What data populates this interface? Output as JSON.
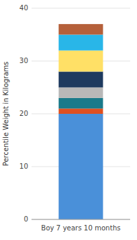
{
  "chart_data": {
    "type": "bar",
    "stacked": true,
    "categories": [
      "Boy 7 years 10 months"
    ],
    "series": [
      {
        "color": "#4a90d9",
        "values": [
          20.0
        ]
      },
      {
        "color": "#e05020",
        "values": [
          1.0
        ]
      },
      {
        "color": "#1a7a8a",
        "values": [
          2.0
        ]
      },
      {
        "color": "#b8b8b8",
        "values": [
          2.0
        ]
      },
      {
        "color": "#1e3a5f",
        "values": [
          3.0
        ]
      },
      {
        "color": "#ffe066",
        "values": [
          4.0
        ]
      },
      {
        "color": "#29b6e8",
        "values": [
          3.0
        ]
      },
      {
        "color": "#b5603a",
        "values": [
          2.0
        ]
      }
    ],
    "ylabel": "Percentile Weight in Kilograms",
    "ylim": [
      0,
      40
    ],
    "yticks": [
      0,
      10,
      20,
      30,
      40
    ],
    "grid": true
  }
}
